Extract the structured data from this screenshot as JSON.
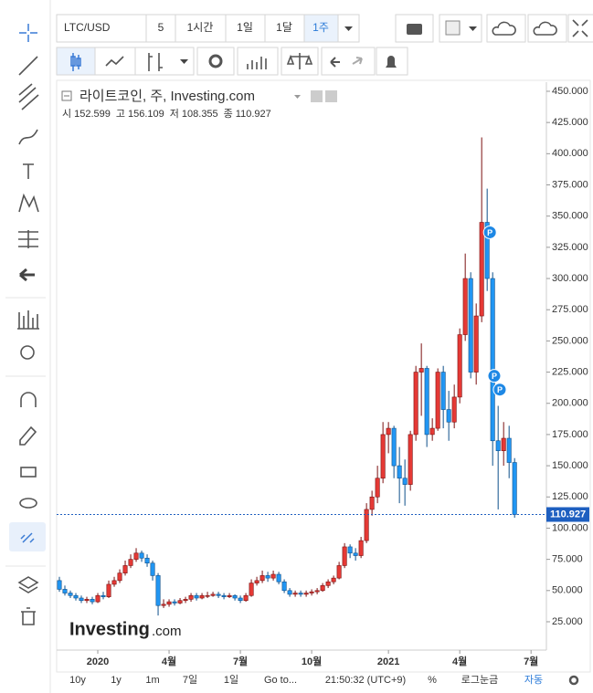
{
  "toolbar": {
    "symbol": "LTC/USD",
    "intervals": [
      "5",
      "1시간",
      "1일",
      "1달",
      "1주"
    ]
  },
  "chart_data": {
    "type": "candlestick",
    "title": "라이트코인, 주, Investing.com",
    "ohlc_labels": [
      "시",
      "고",
      "저",
      "종"
    ],
    "up_color": "#e53935",
    "down_color": "#2196f3",
    "open": [
      58,
      51,
      48,
      46,
      44,
      42,
      43,
      41,
      46,
      45,
      55,
      58,
      64,
      70,
      75,
      80,
      76,
      72,
      62,
      38,
      39,
      41,
      40,
      42,
      43,
      46,
      44,
      46,
      46,
      47,
      46,
      45,
      46,
      44,
      42,
      46,
      56,
      58,
      62,
      60,
      63,
      57,
      50,
      47,
      48,
      47,
      48,
      49,
      50,
      54,
      57,
      60,
      70,
      85,
      80,
      78,
      90,
      115,
      125,
      140,
      175,
      180,
      150,
      140,
      135,
      175,
      225,
      228,
      175,
      180,
      225,
      195,
      185,
      205,
      255,
      300,
      225,
      270,
      345,
      300,
      170,
      162,
      172,
      152.599
    ],
    "high": [
      61,
      54,
      50,
      48,
      46,
      45,
      45,
      48,
      49,
      58,
      61,
      67,
      74,
      79,
      84,
      82,
      79,
      74,
      64,
      43,
      43,
      43,
      44,
      45,
      48,
      48,
      48,
      49,
      49,
      49,
      48,
      48,
      47,
      46,
      48,
      59,
      61,
      66,
      65,
      66,
      65,
      59,
      52,
      50,
      50,
      50,
      51,
      52,
      56,
      59,
      62,
      73,
      88,
      87,
      84,
      93,
      120,
      130,
      150,
      185,
      185,
      182,
      165,
      155,
      178,
      230,
      248,
      230,
      188,
      228,
      230,
      210,
      215,
      260,
      320,
      305,
      280,
      413,
      372,
      305,
      198,
      185,
      182,
      156.109
    ],
    "low": [
      49,
      46,
      44,
      42,
      40,
      40,
      39,
      40,
      43,
      44,
      53,
      56,
      62,
      68,
      73,
      73,
      69,
      58,
      30,
      36,
      37,
      38,
      39,
      40,
      41,
      42,
      43,
      44,
      45,
      44,
      43,
      44,
      42,
      40,
      41,
      45,
      54,
      56,
      57,
      58,
      55,
      48,
      45,
      45,
      45,
      45,
      46,
      47,
      49,
      52,
      55,
      59,
      68,
      76,
      74,
      76,
      88,
      110,
      120,
      136,
      160,
      140,
      120,
      118,
      130,
      170,
      190,
      165,
      170,
      178,
      180,
      170,
      180,
      200,
      250,
      220,
      215,
      265,
      290,
      150,
      115,
      150,
      140,
      108.355
    ],
    "close": [
      51,
      48,
      46,
      44,
      42,
      43,
      41,
      46,
      45,
      55,
      58,
      64,
      70,
      75,
      80,
      76,
      72,
      62,
      38,
      39,
      41,
      40,
      42,
      43,
      46,
      44,
      46,
      46,
      47,
      46,
      45,
      46,
      44,
      42,
      46,
      56,
      58,
      62,
      60,
      63,
      57,
      50,
      47,
      48,
      47,
      48,
      49,
      50,
      54,
      57,
      60,
      70,
      85,
      80,
      78,
      90,
      115,
      125,
      140,
      175,
      180,
      150,
      140,
      135,
      175,
      225,
      228,
      175,
      180,
      225,
      195,
      185,
      205,
      255,
      300,
      225,
      270,
      345,
      300,
      170,
      162,
      172,
      152.599,
      110.927
    ],
    "xlim": [
      -0.5,
      88.8
    ],
    "xticks": [
      {
        "value": 7,
        "label": "2020"
      },
      {
        "value": 20,
        "label": "4월"
      },
      {
        "value": 33,
        "label": "7월"
      },
      {
        "value": 46,
        "label": "10월"
      },
      {
        "value": 60,
        "label": "2021"
      },
      {
        "value": 73,
        "label": "4월"
      },
      {
        "value": 86,
        "label": "7월"
      }
    ],
    "ylim": [
      2.3,
      457.3
    ],
    "yticks": [
      {
        "value": 25,
        "label": "25.000"
      },
      {
        "value": 50,
        "label": "50.000"
      },
      {
        "value": 75,
        "label": "75.000"
      },
      {
        "value": 100,
        "label": "100.000"
      },
      {
        "value": 125,
        "label": "125.000"
      },
      {
        "value": 150,
        "label": "150.000"
      },
      {
        "value": 175,
        "label": "175.000"
      },
      {
        "value": 200,
        "label": "200.000"
      },
      {
        "value": 225,
        "label": "225.000"
      },
      {
        "value": 250,
        "label": "250.000"
      },
      {
        "value": 275,
        "label": "275.000"
      },
      {
        "value": 300,
        "label": "300.000"
      },
      {
        "value": 325,
        "label": "325.000"
      },
      {
        "value": 350,
        "label": "350.000"
      },
      {
        "value": 375,
        "label": "375.000"
      },
      {
        "value": 400,
        "label": "400.000"
      },
      {
        "value": 425,
        "label": "425.000"
      },
      {
        "value": 450,
        "label": "450.000"
      }
    ],
    "events": [
      {
        "index": 78.5,
        "value": 337,
        "label": "P"
      },
      {
        "index": 79.3,
        "value": 222,
        "label": "P"
      },
      {
        "index": 80.3,
        "value": 211,
        "label": "P"
      }
    ]
  },
  "logo": [
    "Investing",
    ".com"
  ],
  "bottom_bar": {
    "ranges": [
      "10y",
      "1y",
      "1m",
      "7일",
      "1일"
    ],
    "goto": "Go to...",
    "time": "21:50:32 (UTC+9)",
    "options": [
      "%",
      "로그눈금",
      "자동"
    ]
  }
}
